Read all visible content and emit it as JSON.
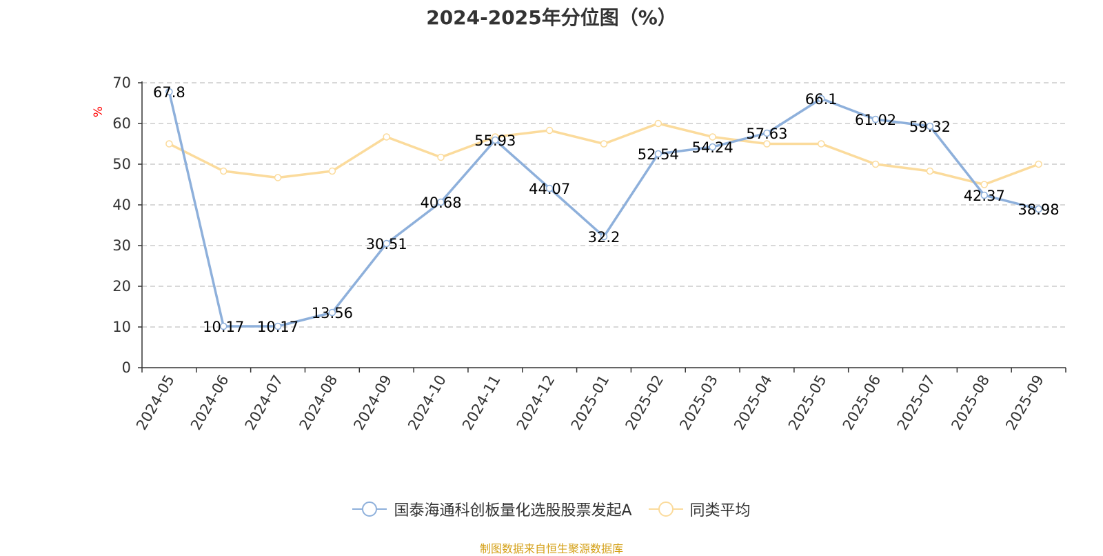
{
  "chart_data": {
    "type": "line",
    "title": "2024-2025年分位图（%）",
    "ylabel": "%",
    "xlabel": "",
    "ylim": [
      0,
      70
    ],
    "yticks": [
      0,
      10,
      20,
      30,
      40,
      50,
      60,
      70
    ],
    "grid": true,
    "categories": [
      "2024-05",
      "2024-06",
      "2024-07",
      "2024-08",
      "2024-09",
      "2024-10",
      "2024-11",
      "2024-12",
      "2025-01",
      "2025-02",
      "2025-03",
      "2025-04",
      "2025-05",
      "2025-06",
      "2025-07",
      "2025-08",
      "2025-09"
    ],
    "series": [
      {
        "name": "国泰海通科创板量化选股股票发起A",
        "color": "#8eb0db",
        "values": [
          67.8,
          10.17,
          10.17,
          13.56,
          30.51,
          40.68,
          55.93,
          44.07,
          32.2,
          52.54,
          54.24,
          57.63,
          66.1,
          61.02,
          59.32,
          42.37,
          38.98
        ],
        "labels": [
          "67.8",
          "10.17",
          "10.17",
          "13.56",
          "30.51",
          "40.68",
          "55.93",
          "44.07",
          "32.2",
          "52.54",
          "54.24",
          "57.63",
          "66.1",
          "61.02",
          "59.32",
          "42.37",
          "38.98"
        ]
      },
      {
        "name": "同类平均",
        "color": "#fbdb9c",
        "values": [
          55,
          48.3,
          46.7,
          48.3,
          56.7,
          51.7,
          56.7,
          58.3,
          55,
          60,
          56.7,
          55,
          55,
          50,
          48.3,
          45,
          50
        ]
      }
    ],
    "legend_position": "bottom"
  },
  "source_note": "制图数据来自恒生聚源数据库",
  "colors": {
    "axis": "#333333",
    "grid": "#cccccc",
    "ylabel": "#ff0000",
    "source": "#d4a017"
  }
}
